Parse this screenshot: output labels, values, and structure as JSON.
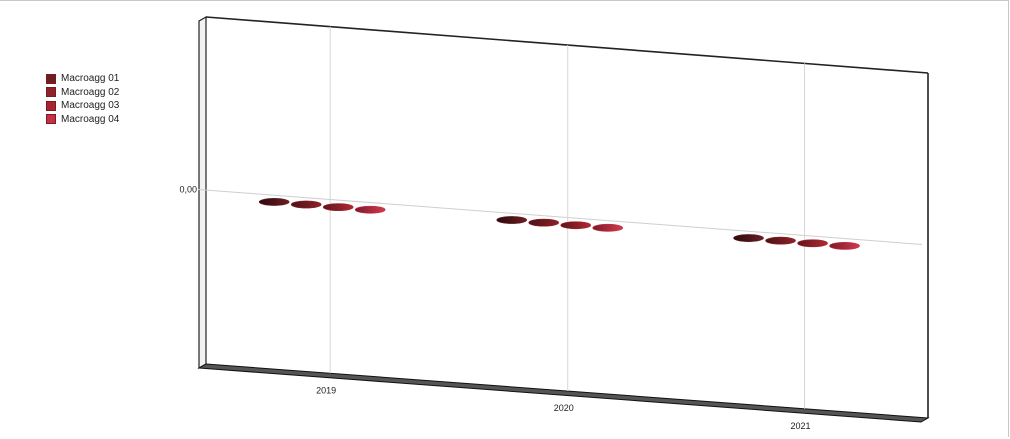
{
  "chart_data": {
    "type": "bar",
    "categories": [
      "2019",
      "2020",
      "2021"
    ],
    "series": [
      {
        "name": "Macroagg 01",
        "values": [
          0,
          0,
          0
        ],
        "color": "#6b1e24"
      },
      {
        "name": "Macroagg 02",
        "values": [
          0,
          0,
          0
        ],
        "color": "#8e2129"
      },
      {
        "name": "Macroagg 03",
        "values": [
          0,
          0,
          0
        ],
        "color": "#a8242e"
      },
      {
        "name": "Macroagg 04",
        "values": [
          0,
          0,
          0
        ],
        "color": "#c72f45"
      }
    ],
    "y_tick_labels": [
      "0,00"
    ],
    "grid": true,
    "legend_position": "top-left",
    "style": "3d"
  }
}
